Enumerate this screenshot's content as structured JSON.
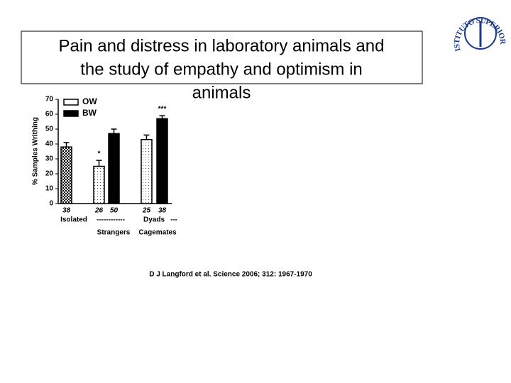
{
  "slide_title": [
    "Pain and distress in laboratory animals and",
    "the study of empathy and optimism in",
    "animals"
  ],
  "citation": "D J Langford et al. Science 2006; 312: 1967-1970",
  "logo_text": "ISTITUTO SUPERIORE DI SANITÀ",
  "chart_data": {
    "type": "bar",
    "ylabel": "% Samples Writhing",
    "ylim": [
      0,
      70
    ],
    "yticks": [
      0,
      10,
      20,
      30,
      40,
      50,
      60,
      70
    ],
    "legend": [
      {
        "name": "OW",
        "color": "#ffffff"
      },
      {
        "name": "BW",
        "color": "#000000"
      }
    ],
    "bars": {
      "values": [
        38,
        25,
        47,
        43,
        57
      ],
      "errors": [
        3,
        4,
        3,
        3,
        2
      ],
      "counts": [
        38,
        26,
        50,
        25,
        38
      ],
      "fills": [
        "checker",
        "dotted",
        "#000000",
        "dotted",
        "#000000"
      ],
      "annotations": [
        null,
        "*",
        null,
        null,
        "***"
      ]
    },
    "x_labels": [
      "Isolated",
      "------------",
      "Dyads",
      "---",
      "Strangers",
      "Cagemates"
    ]
  }
}
